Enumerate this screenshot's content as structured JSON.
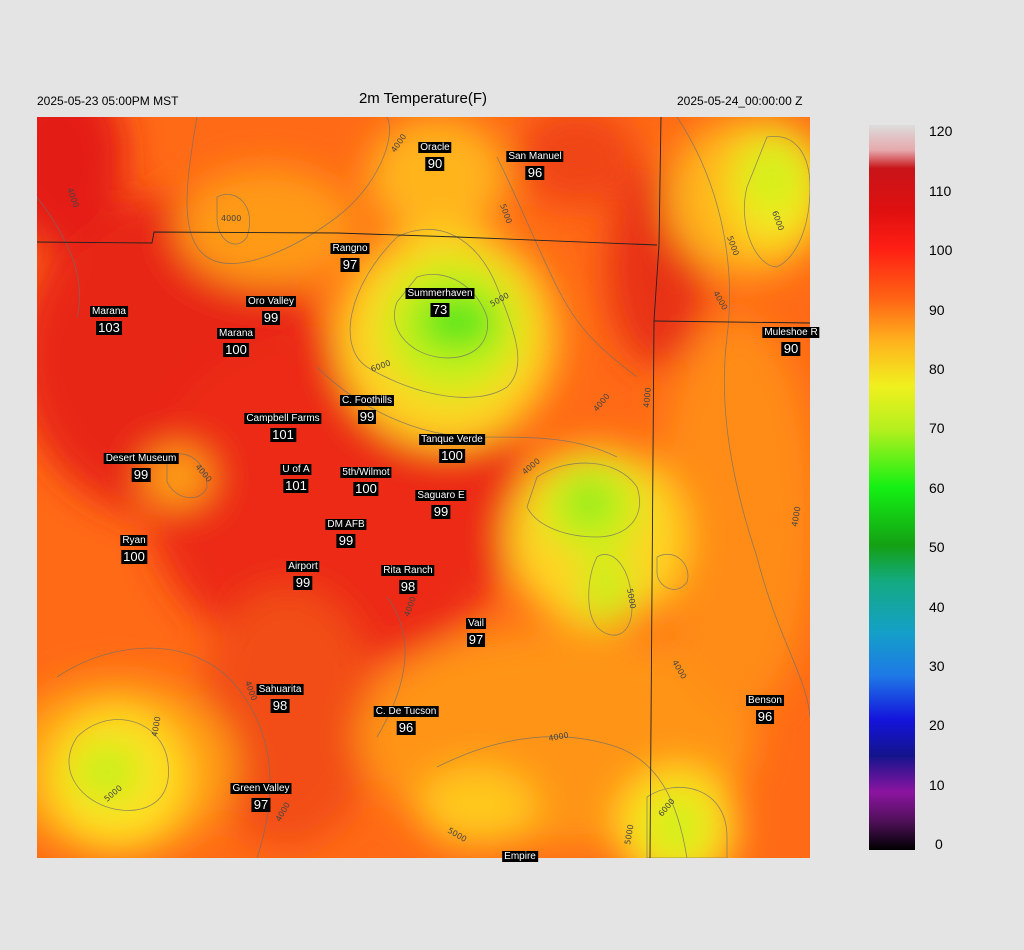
{
  "header": {
    "valid_time": "2025-05-23 05:00PM MST",
    "title": "2m Temperature(F)",
    "init_time": "2025-05-24_00:00:00 Z"
  },
  "contour_labels": [
    "4000",
    "5000",
    "6000"
  ],
  "stations": [
    {
      "name": "Oracle",
      "temp": "90"
    },
    {
      "name": "San Manuel",
      "temp": "96"
    },
    {
      "name": "Rangno",
      "temp": "97"
    },
    {
      "name": "Marana",
      "temp": "103"
    },
    {
      "name": "Oro Valley",
      "temp": "99"
    },
    {
      "name": "Summerhaven",
      "temp": "73"
    },
    {
      "name": "Marana",
      "temp": "100"
    },
    {
      "name": "Muleshoe R",
      "temp": "90"
    },
    {
      "name": "C. Foothills",
      "temp": "99"
    },
    {
      "name": "Campbell Farms",
      "temp": "101"
    },
    {
      "name": "Tanque Verde",
      "temp": "100"
    },
    {
      "name": "Desert Museum",
      "temp": "99"
    },
    {
      "name": "U of A",
      "temp": "101"
    },
    {
      "name": "5th/Wilmot",
      "temp": "100"
    },
    {
      "name": "Saguaro E",
      "temp": "99"
    },
    {
      "name": "DM AFB",
      "temp": "99"
    },
    {
      "name": "Ryan",
      "temp": "100"
    },
    {
      "name": "Airport",
      "temp": "99"
    },
    {
      "name": "Rita Ranch",
      "temp": "98"
    },
    {
      "name": "Vail",
      "temp": "97"
    },
    {
      "name": "Sahuarita",
      "temp": "98"
    },
    {
      "name": "C. De Tucson",
      "temp": "96"
    },
    {
      "name": "Benson",
      "temp": "96"
    },
    {
      "name": "Green Valley",
      "temp": "97"
    },
    {
      "name": "Empire",
      "temp": ""
    }
  ],
  "colorbar": {
    "ticks": [
      "120",
      "110",
      "100",
      "90",
      "80",
      "70",
      "60",
      "50",
      "40",
      "30",
      "20",
      "10",
      "0"
    ],
    "colors": [
      "#d9d9d9",
      "#e6a0a8",
      "#d81418",
      "#e81818",
      "#ff5a14",
      "#ff9a14",
      "#ffd21e",
      "#d8f014",
      "#9cf01e",
      "#14f014",
      "#14a014",
      "#14b4a0",
      "#1e9ad0",
      "#1e64e6",
      "#1414d2",
      "#1e0a8c",
      "#78148c",
      "#3c0a3c",
      "#000000"
    ]
  }
}
